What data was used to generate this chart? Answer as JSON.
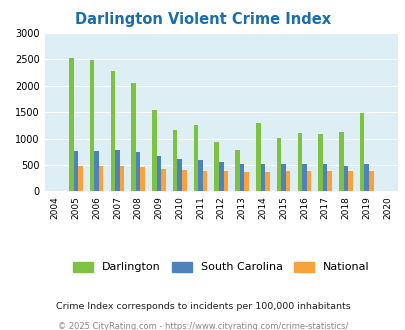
{
  "title": "Darlington Violent Crime Index",
  "all_years": [
    2004,
    2005,
    2006,
    2007,
    2008,
    2009,
    2010,
    2011,
    2012,
    2013,
    2014,
    2015,
    2016,
    2017,
    2018,
    2019,
    2020
  ],
  "data_years": [
    2005,
    2006,
    2007,
    2008,
    2009,
    2010,
    2011,
    2012,
    2013,
    2014,
    2015,
    2016,
    2017,
    2018,
    2019
  ],
  "darlington": [
    2530,
    2480,
    2275,
    2060,
    1540,
    1160,
    1250,
    940,
    780,
    1300,
    1010,
    1110,
    1090,
    1120,
    1490
  ],
  "south_carolina": [
    770,
    770,
    790,
    740,
    670,
    610,
    590,
    565,
    520,
    520,
    510,
    510,
    510,
    490,
    510
  ],
  "national": [
    490,
    480,
    480,
    460,
    430,
    405,
    390,
    390,
    370,
    370,
    395,
    390,
    395,
    385,
    385
  ],
  "darlington_color": "#7dc243",
  "sc_color": "#4f81bd",
  "national_color": "#f9a13a",
  "bg_color": "#ddeef5",
  "ylim": [
    0,
    3000
  ],
  "yticks": [
    0,
    500,
    1000,
    1500,
    2000,
    2500,
    3000
  ],
  "subtitle": "Crime Index corresponds to incidents per 100,000 inhabitants",
  "footer": "© 2025 CityRating.com - https://www.cityrating.com/crime-statistics/",
  "legend_labels": [
    "Darlington",
    "South Carolina",
    "National"
  ],
  "bar_width": 0.22
}
